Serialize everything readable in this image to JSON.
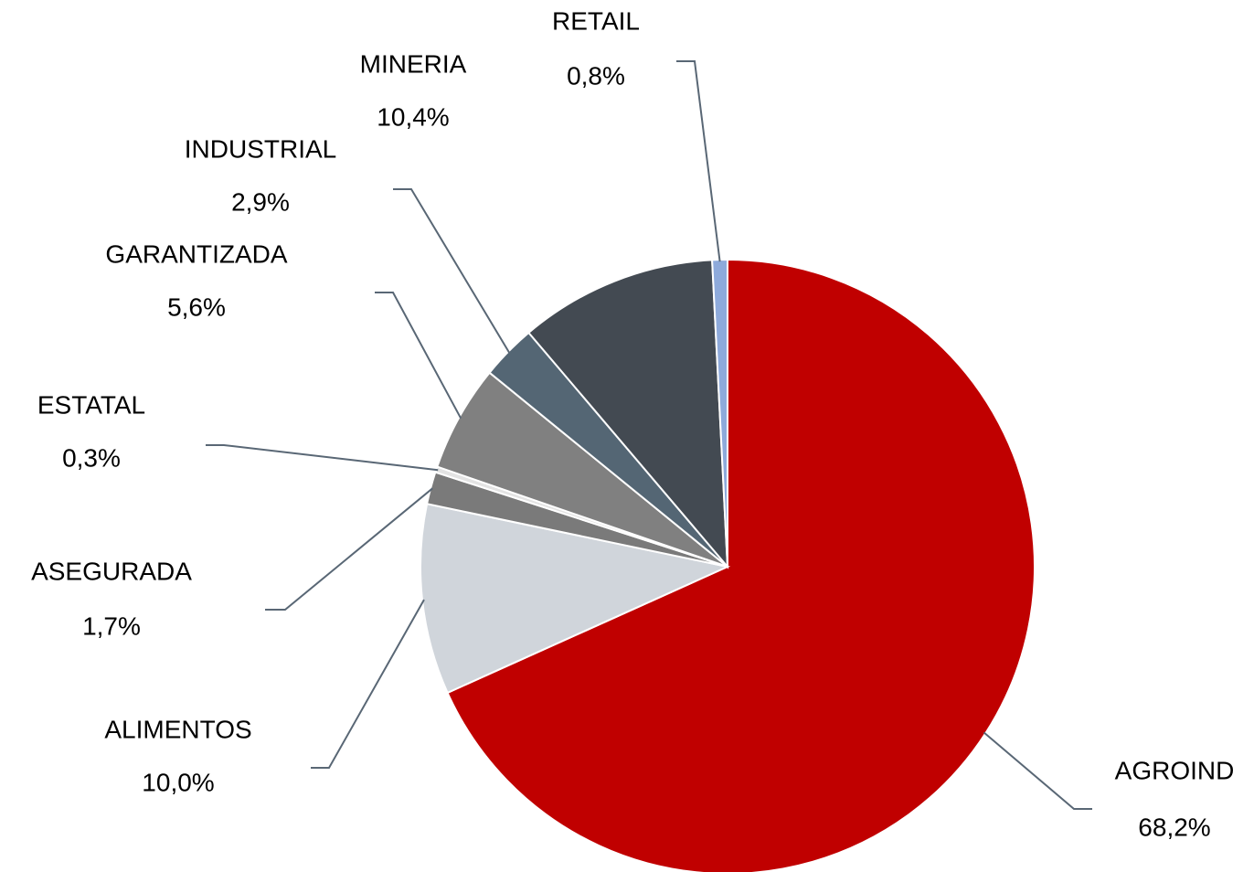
{
  "chart_data": {
    "type": "pie",
    "categories": [
      "AGROIND",
      "ALIMENTOS",
      "ASEGURADA",
      "ESTATAL",
      "GARANTIZADA",
      "INDUSTRIAL",
      "MINERIA",
      "RETAIL"
    ],
    "values": [
      68.2,
      10.0,
      1.7,
      0.3,
      5.6,
      2.9,
      10.4,
      0.8
    ],
    "value_labels": [
      "68,2%",
      "10,0%",
      "1,7%",
      "0,3%",
      "5,6%",
      "2,9%",
      "10,4%",
      "0,8%"
    ],
    "colors": [
      "#c00000",
      "#d0d5db",
      "#7a7a7a",
      "#e3e3e3",
      "#808080",
      "#546674",
      "#434a52",
      "#8eaadb"
    ]
  }
}
